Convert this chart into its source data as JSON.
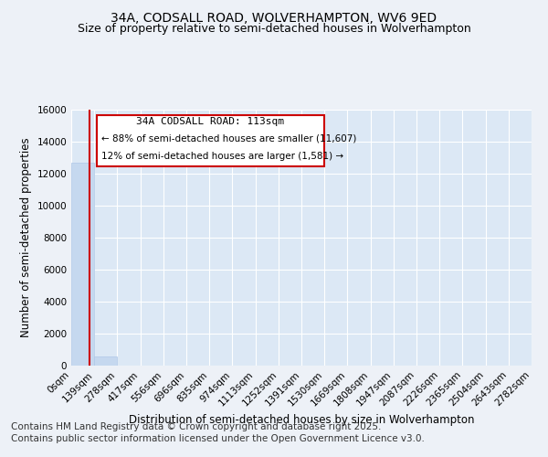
{
  "title": "34A, CODSALL ROAD, WOLVERHAMPTON, WV6 9ED",
  "subtitle": "Size of property relative to semi-detached houses in Wolverhampton",
  "ylabel": "Number of semi-detached properties",
  "xlabel": "Distribution of semi-detached houses by size in Wolverhampton",
  "footer_line1": "Contains HM Land Registry data © Crown copyright and database right 2025.",
  "footer_line2": "Contains public sector information licensed under the Open Government Licence v3.0.",
  "bar_values": [
    12700,
    550,
    0,
    0,
    0,
    0,
    0,
    0,
    0,
    0,
    0,
    0,
    0,
    0,
    0,
    0,
    0,
    0,
    0,
    0
  ],
  "bin_edges": [
    0,
    139,
    278,
    417,
    556,
    696,
    835,
    974,
    1113,
    1252,
    1391,
    1530,
    1669,
    1808,
    1947,
    2087,
    2226,
    2365,
    2504,
    2643,
    2782
  ],
  "bin_labels": [
    "0sqm",
    "139sqm",
    "278sqm",
    "417sqm",
    "556sqm",
    "696sqm",
    "835sqm",
    "974sqm",
    "1113sqm",
    "1252sqm",
    "1391sqm",
    "1530sqm",
    "1669sqm",
    "1808sqm",
    "1947sqm",
    "2087sqm",
    "2226sqm",
    "2365sqm",
    "2504sqm",
    "2643sqm",
    "2782sqm"
  ],
  "bar_color": "#c5d8ef",
  "bar_edge_color": "#b0c8e8",
  "property_size": 113,
  "vline_color": "#cc0000",
  "annotation_line1": "34A CODSALL ROAD: 113sqm",
  "annotation_line2": "← 88% of semi-detached houses are smaller (11,607)",
  "annotation_line3": "12% of semi-detached houses are larger (1,581) →",
  "annotation_box_color": "#cc0000",
  "ylim": [
    0,
    16000
  ],
  "yticks": [
    0,
    2000,
    4000,
    6000,
    8000,
    10000,
    12000,
    14000,
    16000
  ],
  "bg_color": "#edf1f7",
  "plot_bg_color": "#dce8f5",
  "grid_color": "#ffffff",
  "title_fontsize": 10,
  "subtitle_fontsize": 9,
  "footer_fontsize": 7.5
}
